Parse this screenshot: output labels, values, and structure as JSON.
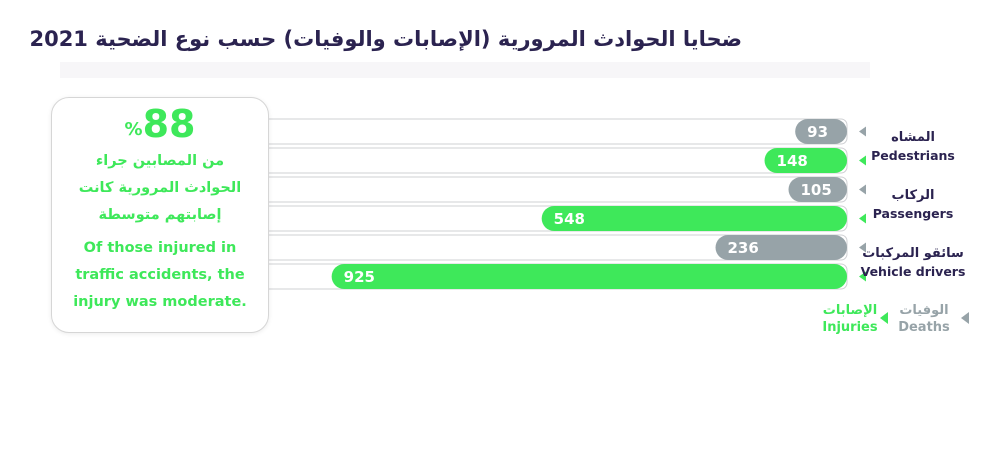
{
  "title": "ضحايا الحوادث المرورية (الإصابات والوفيات) حسب نوع الضحية 2021",
  "callout": {
    "value": "88",
    "unit": "%",
    "text_ar": "من المصابين جراء الحوادث المرورية كانت إصابتهم متوسطة",
    "text_en": "Of those injured in traffic accidents, the injury was moderate."
  },
  "colors": {
    "deaths": "#97a3a8",
    "injuries": "#3ee85a",
    "text": "#2b2350"
  },
  "chart_data": {
    "type": "bar",
    "orientation": "horizontal",
    "title": "ضحايا الحوادث المرورية (الإصابات والوفيات) حسب نوع الضحية 2021",
    "categories": [
      {
        "ar": "المشاه",
        "en": "Pedestrians"
      },
      {
        "ar": "الركاب",
        "en": "Passengers"
      },
      {
        "ar": "سائقو المركبات",
        "en": "Vehicle drivers"
      }
    ],
    "series": [
      {
        "name": "الوفيات Deaths",
        "name_ar": "الوفيات",
        "name_en": "Deaths",
        "color": "#97a3a8",
        "values": [
          93,
          105,
          236
        ]
      },
      {
        "name": "الإصابات Injuries",
        "name_ar": "الإصابات",
        "name_en": "Injuries",
        "color": "#3ee85a",
        "values": [
          148,
          548,
          925
        ]
      }
    ],
    "xlim": [
      0,
      1050
    ],
    "legend": "bottom-right",
    "grid": false
  }
}
